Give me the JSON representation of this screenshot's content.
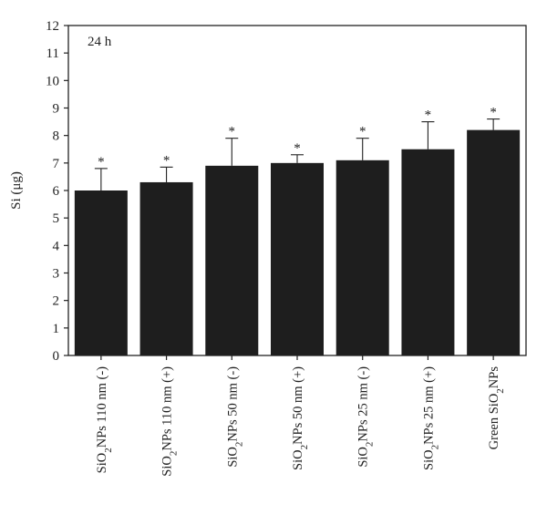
{
  "chart_data": {
    "type": "bar",
    "panel_label": "24 h",
    "ylabel": "Si (μg)",
    "xlabel": "",
    "ylim": [
      0,
      12
    ],
    "yticks": [
      0,
      1,
      2,
      3,
      4,
      5,
      6,
      7,
      8,
      9,
      10,
      11,
      12
    ],
    "categories": [
      {
        "prefix": "SiO",
        "sub": "2",
        "suffix": "NPs 110 nm (-)"
      },
      {
        "prefix": "SiO",
        "sub": "2",
        "suffix": "NPs 110 nm (+)"
      },
      {
        "prefix": "SiO",
        "sub": "2",
        "suffix": "NPs 50 nm (-)"
      },
      {
        "prefix": "SiO",
        "sub": "2",
        "suffix": "NPs 50 nm (+)"
      },
      {
        "prefix": "SiO",
        "sub": "2",
        "suffix": "NPs 25 nm (-)"
      },
      {
        "prefix": "SiO",
        "sub": "2",
        "suffix": "NPs 25 nm (+)"
      },
      {
        "prefix": "Green SiO",
        "sub": "2",
        "suffix": "NPs"
      }
    ],
    "values": [
      6.0,
      6.3,
      6.9,
      7.0,
      7.1,
      7.5,
      8.2
    ],
    "errors": [
      0.8,
      0.55,
      1.0,
      0.3,
      0.8,
      1.0,
      0.4
    ],
    "significance": [
      "*",
      "*",
      "*",
      "*",
      "*",
      "*",
      "*"
    ],
    "bar_color": "#1e1e1e",
    "grid": false,
    "legend": "none"
  }
}
